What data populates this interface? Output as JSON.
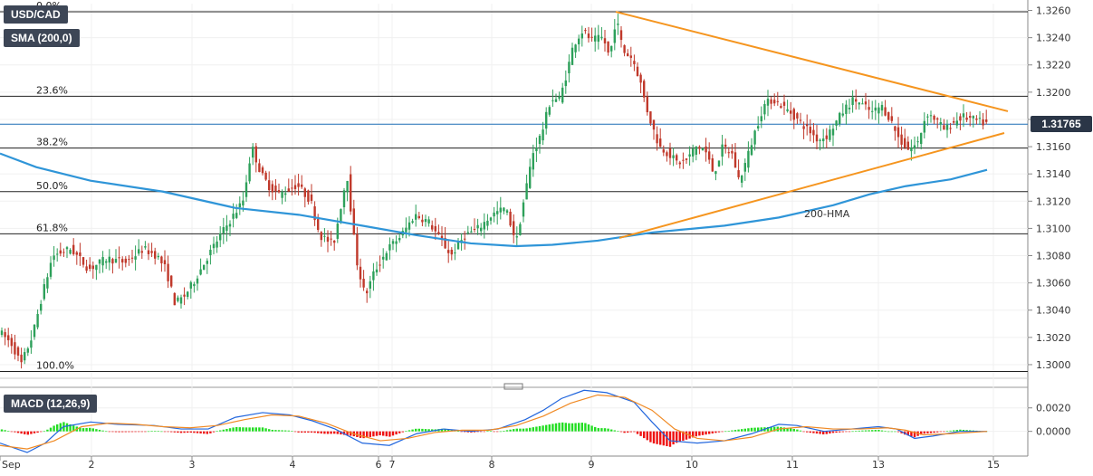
{
  "header": {
    "symbol": "USD/CAD",
    "sma": "SMA (200,0)",
    "macd": "MACD (12,26,9)",
    "last_price": "1.31765"
  },
  "colors": {
    "bull": "#2da05a",
    "bear": "#c0392b",
    "trendline": "#f5951f",
    "hma": "#2f95d8",
    "hist_up": "#22dd22",
    "hist_down": "#ee1111",
    "macd_line": "#2266dd",
    "signal_line": "#f08a24"
  },
  "chart_data": [
    {
      "type": "candlestick",
      "x_ticks": [
        "Sep",
        "2",
        "3",
        "4",
        "6",
        "7",
        "8",
        "9",
        "10",
        "11",
        "13",
        "15"
      ],
      "y_ticks": [
        "1.3000",
        "1.3020",
        "1.3040",
        "1.3060",
        "1.3080",
        "1.3100",
        "1.3120",
        "1.3140",
        "1.3160",
        "1.3180",
        "1.3200",
        "1.3220",
        "1.3240",
        "1.3260"
      ],
      "ylim": [
        1.299,
        1.3265
      ],
      "fib_levels": [
        {
          "label": "0.0%",
          "value": 1.3259
        },
        {
          "label": "23.6%",
          "value": 1.3197
        },
        {
          "label": "38.2%",
          "value": 1.3159
        },
        {
          "label": "50.0%",
          "value": 1.3127
        },
        {
          "label": "61.8%",
          "value": 1.3096
        },
        {
          "label": "100.0%",
          "value": 1.2995
        }
      ],
      "last_price": 1.31765,
      "hma_label": "200-HMA",
      "hma": [
        [
          0,
          1.3155
        ],
        [
          40,
          1.3145
        ],
        [
          100,
          1.3135
        ],
        [
          180,
          1.3127
        ],
        [
          260,
          1.3115
        ],
        [
          330,
          1.311
        ],
        [
          400,
          1.3102
        ],
        [
          460,
          1.3095
        ],
        [
          520,
          1.3089
        ],
        [
          570,
          1.3087
        ],
        [
          610,
          1.3088
        ],
        [
          660,
          1.3091
        ],
        [
          720,
          1.3097
        ],
        [
          800,
          1.3102
        ],
        [
          860,
          1.3108
        ],
        [
          920,
          1.3117
        ],
        [
          960,
          1.3125
        ],
        [
          1000,
          1.3131
        ],
        [
          1050,
          1.3136
        ],
        [
          1090,
          1.3143
        ]
      ],
      "trendlines": [
        {
          "name": "resistance",
          "points": [
            [
              680,
              1.3259
            ],
            [
              1113,
              1.3186
            ]
          ]
        },
        {
          "name": "support",
          "points": [
            [
              684,
              1.3093
            ],
            [
              1109,
              1.317
            ]
          ]
        }
      ],
      "anchor_path": [
        [
          0,
          1.3025
        ],
        [
          15,
          1.3015
        ],
        [
          25,
          1.3
        ],
        [
          38,
          1.3022
        ],
        [
          48,
          1.305
        ],
        [
          60,
          1.308
        ],
        [
          80,
          1.3085
        ],
        [
          100,
          1.307
        ],
        [
          120,
          1.3078
        ],
        [
          140,
          1.3075
        ],
        [
          160,
          1.3085
        ],
        [
          175,
          1.308
        ],
        [
          185,
          1.307
        ],
        [
          195,
          1.3045
        ],
        [
          205,
          1.305
        ],
        [
          215,
          1.306
        ],
        [
          230,
          1.3078
        ],
        [
          245,
          1.3095
        ],
        [
          260,
          1.311
        ],
        [
          270,
          1.312
        ],
        [
          280,
          1.316
        ],
        [
          290,
          1.314
        ],
        [
          300,
          1.313
        ],
        [
          310,
          1.3125
        ],
        [
          330,
          1.3132
        ],
        [
          345,
          1.312
        ],
        [
          355,
          1.3095
        ],
        [
          370,
          1.3088
        ],
        [
          385,
          1.314
        ],
        [
          395,
          1.3078
        ],
        [
          405,
          1.305
        ],
        [
          415,
          1.3068
        ],
        [
          430,
          1.3085
        ],
        [
          445,
          1.3095
        ],
        [
          460,
          1.311
        ],
        [
          475,
          1.3105
        ],
        [
          490,
          1.309
        ],
        [
          500,
          1.308
        ],
        [
          515,
          1.3095
        ],
        [
          530,
          1.31
        ],
        [
          545,
          1.311
        ],
        [
          560,
          1.3115
        ],
        [
          572,
          1.309
        ],
        [
          580,
          1.312
        ],
        [
          590,
          1.3155
        ],
        [
          600,
          1.317
        ],
        [
          610,
          1.3195
        ],
        [
          620,
          1.3195
        ],
        [
          628,
          1.3215
        ],
        [
          635,
          1.3235
        ],
        [
          645,
          1.3245
        ],
        [
          655,
          1.3238
        ],
        [
          668,
          1.324
        ],
        [
          675,
          1.3225
        ],
        [
          682,
          1.3255
        ],
        [
          690,
          1.323
        ],
        [
          700,
          1.3225
        ],
        [
          708,
          1.321
        ],
        [
          715,
          1.319
        ],
        [
          722,
          1.3175
        ],
        [
          730,
          1.316
        ],
        [
          740,
          1.3155
        ],
        [
          750,
          1.3148
        ],
        [
          760,
          1.315
        ],
        [
          770,
          1.316
        ],
        [
          780,
          1.3158
        ],
        [
          790,
          1.314
        ],
        [
          800,
          1.316
        ],
        [
          810,
          1.3155
        ],
        [
          818,
          1.3135
        ],
        [
          826,
          1.315
        ],
        [
          835,
          1.317
        ],
        [
          845,
          1.319
        ],
        [
          855,
          1.3195
        ],
        [
          865,
          1.319
        ],
        [
          875,
          1.3185
        ],
        [
          885,
          1.3178
        ],
        [
          895,
          1.3172
        ],
        [
          905,
          1.3165
        ],
        [
          915,
          1.3168
        ],
        [
          925,
          1.3178
        ],
        [
          935,
          1.3188
        ],
        [
          945,
          1.3195
        ],
        [
          955,
          1.319
        ],
        [
          965,
          1.3185
        ],
        [
          975,
          1.319
        ],
        [
          985,
          1.318
        ],
        [
          995,
          1.3165
        ],
        [
          1005,
          1.3158
        ],
        [
          1015,
          1.3162
        ],
        [
          1025,
          1.3185
        ],
        [
          1035,
          1.318
        ],
        [
          1045,
          1.3172
        ],
        [
          1055,
          1.3178
        ],
        [
          1065,
          1.3182
        ],
        [
          1075,
          1.318
        ],
        [
          1090,
          1.3177
        ]
      ]
    },
    {
      "type": "macd",
      "name": "MACD (12,26,9)",
      "y_ticks": [
        "0.0000",
        "0.0020"
      ],
      "ylim": [
        -0.0018,
        0.0036
      ],
      "macd": [
        [
          0,
          -0.001
        ],
        [
          30,
          -0.0018
        ],
        [
          50,
          -0.001
        ],
        [
          70,
          0.0004
        ],
        [
          100,
          0.0008
        ],
        [
          130,
          0.0006
        ],
        [
          170,
          0.0005
        ],
        [
          200,
          0.0002
        ],
        [
          230,
          0.0002
        ],
        [
          260,
          0.0012
        ],
        [
          290,
          0.0016
        ],
        [
          320,
          0.0014
        ],
        [
          345,
          0.0009
        ],
        [
          370,
          0.0002
        ],
        [
          400,
          -0.001
        ],
        [
          430,
          -0.0012
        ],
        [
          460,
          -0.0002
        ],
        [
          490,
          0.0002
        ],
        [
          520,
          0.0
        ],
        [
          550,
          0.0002
        ],
        [
          580,
          0.001
        ],
        [
          600,
          0.0018
        ],
        [
          620,
          0.0028
        ],
        [
          645,
          0.0035
        ],
        [
          670,
          0.0033
        ],
        [
          700,
          0.0025
        ],
        [
          720,
          0.0008
        ],
        [
          740,
          -0.0008
        ],
        [
          770,
          -0.001
        ],
        [
          800,
          -0.0008
        ],
        [
          830,
          -0.0002
        ],
        [
          860,
          0.0006
        ],
        [
          880,
          0.0005
        ],
        [
          910,
          0.0
        ],
        [
          940,
          0.0002
        ],
        [
          970,
          0.0004
        ],
        [
          990,
          0.0002
        ],
        [
          1010,
          -0.0006
        ],
        [
          1030,
          -0.0004
        ],
        [
          1060,
          0.0
        ],
        [
          1090,
          0.0
        ]
      ],
      "signal": [
        [
          0,
          -0.0012
        ],
        [
          30,
          -0.0015
        ],
        [
          60,
          -0.0008
        ],
        [
          90,
          0.0004
        ],
        [
          120,
          0.0007
        ],
        [
          150,
          0.0006
        ],
        [
          180,
          0.0004
        ],
        [
          210,
          0.0003
        ],
        [
          240,
          0.0005
        ],
        [
          270,
          0.001
        ],
        [
          300,
          0.0014
        ],
        [
          330,
          0.0013
        ],
        [
          360,
          0.0007
        ],
        [
          390,
          -0.0002
        ],
        [
          420,
          -0.0008
        ],
        [
          450,
          -0.0006
        ],
        [
          480,
          -0.0001
        ],
        [
          510,
          0.0001
        ],
        [
          540,
          0.0001
        ],
        [
          570,
          0.0005
        ],
        [
          600,
          0.0013
        ],
        [
          630,
          0.0024
        ],
        [
          660,
          0.0031
        ],
        [
          690,
          0.0029
        ],
        [
          720,
          0.0018
        ],
        [
          745,
          0.0002
        ],
        [
          770,
          -0.0006
        ],
        [
          800,
          -0.0008
        ],
        [
          830,
          -0.0005
        ],
        [
          860,
          0.0002
        ],
        [
          890,
          0.0004
        ],
        [
          920,
          0.0002
        ],
        [
          950,
          0.0002
        ],
        [
          980,
          0.0003
        ],
        [
          1000,
          0.0001
        ],
        [
          1020,
          -0.0003
        ],
        [
          1050,
          -0.0002
        ],
        [
          1090,
          0.0
        ]
      ]
    }
  ]
}
